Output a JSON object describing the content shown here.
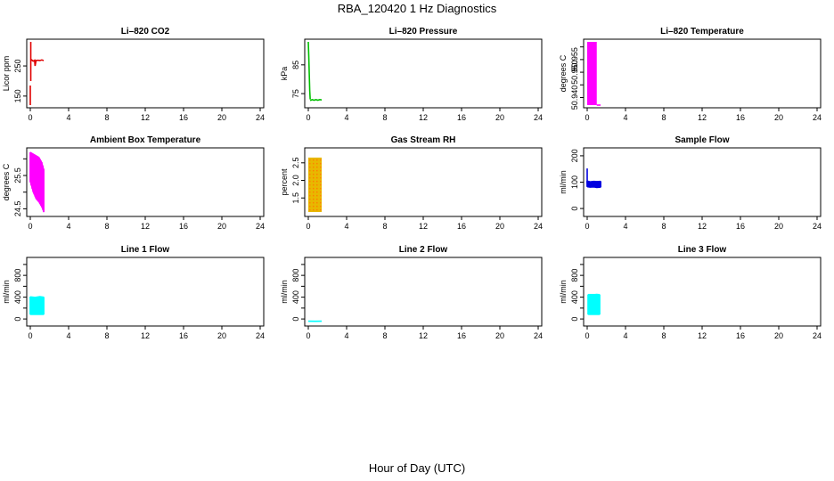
{
  "title": "RBA_120420  1 Hz Diagnostics",
  "xlabel": "Hour of Day (UTC)",
  "colors": {
    "red": "#e00000",
    "green": "#00c000",
    "magenta": "#ff00ff",
    "blue": "#0000e0",
    "cyan": "#00ffff",
    "gold": "#e8b800",
    "orange": "#ff8000"
  },
  "chart_data": [
    {
      "type": "line",
      "title": "Li–820 CO2",
      "ylabel": "Licor ppm",
      "xlim": [
        0,
        24
      ],
      "xticks": [
        0,
        4,
        8,
        12,
        16,
        20,
        24
      ],
      "ylim": [
        120,
        330
      ],
      "yticks": [
        150,
        250
      ],
      "ytick_labels": [
        "150",
        "250"
      ],
      "color_key": "red",
      "series": [
        {
          "kind": "segment",
          "x": [
            0.0,
            0.0
          ],
          "y": [
            120,
            185
          ]
        },
        {
          "kind": "segment",
          "x": [
            0.05,
            0.05
          ],
          "y": [
            200,
            330
          ]
        },
        {
          "kind": "line",
          "x": [
            0.05,
            0.15,
            0.3,
            0.45,
            0.5,
            0.6,
            0.8,
            1.0,
            1.2,
            1.4
          ],
          "y": [
            268,
            270,
            266,
            269,
            250,
            268,
            269,
            268,
            270,
            268
          ]
        }
      ]
    },
    {
      "type": "line",
      "title": "Li–820 Pressure",
      "ylabel": "kPa",
      "xlim": [
        0,
        24
      ],
      "xticks": [
        0,
        4,
        8,
        12,
        16,
        20,
        24
      ],
      "ylim": [
        71,
        93
      ],
      "yticks": [
        75,
        85
      ],
      "ytick_labels": [
        "75",
        "85"
      ],
      "color_key": "green",
      "series": [
        {
          "kind": "line",
          "x": [
            0.0,
            0.05,
            0.1,
            0.15,
            0.2
          ],
          "y": [
            93,
            88,
            82,
            76,
            73
          ]
        },
        {
          "kind": "line",
          "x": [
            0.2,
            0.4,
            0.6,
            0.8,
            1.0,
            1.2,
            1.4
          ],
          "y": [
            72.6,
            72.9,
            72.7,
            72.9,
            72.7,
            72.9,
            72.8
          ]
        }
      ]
    },
    {
      "type": "area",
      "title": "Li–820 Temperature",
      "ylabel": "degrees C",
      "xlim": [
        0,
        24
      ],
      "xticks": [
        0,
        4,
        8,
        12,
        16,
        20,
        24
      ],
      "ylim": [
        50.937,
        50.962
      ],
      "yticks": [
        50.94,
        50.945,
        50.95,
        50.955,
        50.96
      ],
      "ytick_labels": [
        "50.940",
        "",
        "50.950",
        "50.955",
        ""
      ],
      "color_key": "magenta",
      "series": [
        {
          "kind": "rect",
          "x": [
            0.0,
            1.0
          ],
          "y": [
            50.937,
            50.962
          ]
        },
        {
          "kind": "segment",
          "x": [
            1.0,
            1.4
          ],
          "y": [
            50.937,
            50.937
          ]
        }
      ]
    },
    {
      "type": "line",
      "title": "Ambient Box Temperature",
      "ylabel": "degrees C",
      "xlim": [
        0,
        24
      ],
      "xticks": [
        0,
        4,
        8,
        12,
        16,
        20,
        24
      ],
      "ylim": [
        24.35,
        26.25
      ],
      "yticks": [
        24.5,
        25.0,
        25.5,
        26.0
      ],
      "ytick_labels": [
        "24.5",
        "",
        "25.5",
        ""
      ],
      "color_key": "magenta",
      "series": [
        {
          "kind": "envelope",
          "x": [
            0.0,
            0.3,
            0.6,
            0.9,
            1.2,
            1.4
          ],
          "ylow": [
            25.3,
            25.0,
            24.8,
            24.7,
            24.55,
            24.4
          ],
          "yhigh": [
            26.2,
            26.15,
            26.1,
            26.05,
            25.9,
            25.7
          ],
          "bands": 14
        }
      ]
    },
    {
      "type": "area",
      "title": "Gas Stream RH",
      "ylabel": "percent",
      "xlim": [
        0,
        24
      ],
      "xticks": [
        0,
        4,
        8,
        12,
        16,
        20,
        24
      ],
      "ylim": [
        1.05,
        2.85
      ],
      "yticks": [
        1.5,
        2.0,
        2.5
      ],
      "ytick_labels": [
        "1.5",
        "2.0",
        "2.5"
      ],
      "color_key": "gold",
      "series": [
        {
          "kind": "rect",
          "x": [
            0.0,
            1.4
          ],
          "y": [
            1.1,
            2.65
          ]
        }
      ]
    },
    {
      "type": "line",
      "title": "Sample Flow",
      "ylabel": "ml/min",
      "xlim": [
        0,
        24
      ],
      "xticks": [
        0,
        4,
        8,
        12,
        16,
        20,
        24
      ],
      "ylim": [
        -20,
        220
      ],
      "yticks": [
        0,
        100,
        200
      ],
      "ytick_labels": [
        "0",
        "100",
        "200"
      ],
      "color_key": "blue",
      "series": [
        {
          "kind": "segment",
          "x": [
            0.0,
            0.0
          ],
          "y": [
            95,
            152
          ]
        },
        {
          "kind": "envelope",
          "x": [
            0.0,
            0.3,
            0.7,
            1.0,
            1.4
          ],
          "ylow": [
            82,
            80,
            81,
            79,
            80
          ],
          "yhigh": [
            105,
            102,
            104,
            103,
            104
          ],
          "bands": 12
        }
      ]
    },
    {
      "type": "line",
      "title": "Line 1 Flow",
      "ylabel": "ml/min",
      "xlim": [
        0,
        24
      ],
      "xticks": [
        0,
        4,
        8,
        12,
        16,
        20,
        24
      ],
      "ylim": [
        -80,
        1080
      ],
      "yticks": [
        0,
        200,
        400,
        600,
        800,
        1000
      ],
      "ytick_labels": [
        "0",
        "",
        "400",
        "",
        "800",
        ""
      ],
      "color_key": "cyan",
      "series": [
        {
          "kind": "envelope",
          "x": [
            0.0,
            0.5,
            1.0,
            1.4
          ],
          "ylow": [
            80,
            80,
            80,
            80
          ],
          "yhigh": [
            410,
            400,
            415,
            405
          ],
          "bands": 14
        }
      ]
    },
    {
      "type": "line",
      "title": "Line 2 Flow",
      "ylabel": "ml/min",
      "xlim": [
        0,
        24
      ],
      "xticks": [
        0,
        4,
        8,
        12,
        16,
        20,
        24
      ],
      "ylim": [
        -80,
        1080
      ],
      "yticks": [
        0,
        200,
        400,
        600,
        800,
        1000
      ],
      "ytick_labels": [
        "0",
        "",
        "400",
        "",
        "800",
        ""
      ],
      "color_key": "cyan",
      "series": [
        {
          "kind": "line",
          "x": [
            0.0,
            0.7,
            1.4
          ],
          "y": [
            -40,
            -42,
            -40
          ]
        }
      ]
    },
    {
      "type": "line",
      "title": "Line 3 Flow",
      "ylabel": "ml/min",
      "xlim": [
        0,
        24
      ],
      "xticks": [
        0,
        4,
        8,
        12,
        16,
        20,
        24
      ],
      "ylim": [
        -80,
        1080
      ],
      "yticks": [
        0,
        200,
        400,
        600,
        800,
        1000
      ],
      "ytick_labels": [
        "0",
        "",
        "400",
        "",
        "800",
        ""
      ],
      "color_key": "cyan",
      "series": [
        {
          "kind": "rect",
          "x": [
            0.1,
            1.3
          ],
          "y": [
            440,
            460
          ]
        },
        {
          "kind": "envelope",
          "x": [
            0.1,
            0.5,
            1.0,
            1.3
          ],
          "ylow": [
            80,
            80,
            80,
            80
          ],
          "yhigh": [
            450,
            445,
            455,
            450
          ],
          "bands": 10
        }
      ]
    }
  ]
}
